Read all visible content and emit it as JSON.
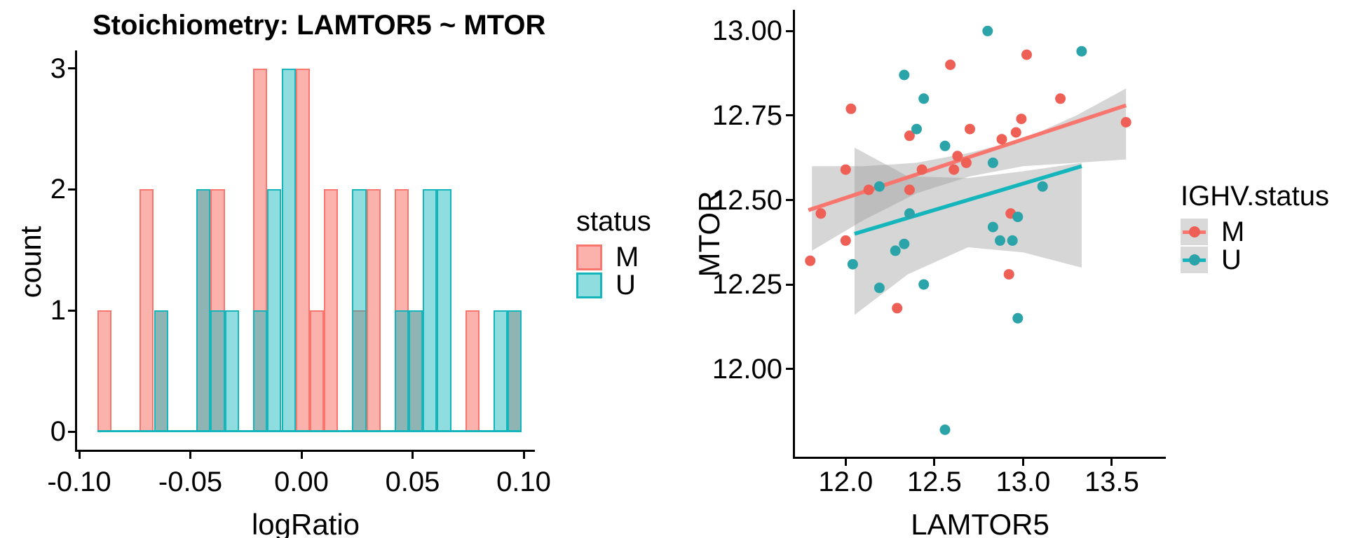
{
  "page": {
    "background": "#ffffff"
  },
  "colors": {
    "m": "#F8766D",
    "m_fill": "rgba(248,118,109,0.56)",
    "m_point": "#EE5F56",
    "u": "#14B6BB",
    "u_fill": "rgba(20,182,187,0.47)",
    "u_point": "#2AA4A9",
    "band": "#999999",
    "band_alpha": 0.4,
    "legend_key_bg": "#D9D9D9",
    "axis": "#000000",
    "text": "#000000"
  },
  "chart_data": [
    {
      "type": "bar",
      "subtype": "overlaid-histogram",
      "title": "Stoichiometry: LAMTOR5 ~ MTOR",
      "xlabel": "logRatio",
      "ylabel": "count",
      "xlim": [
        -0.103,
        0.106
      ],
      "ylim": [
        -0.16,
        3.16
      ],
      "grid": false,
      "bin_width": 0.00637,
      "x_ticks": {
        "values": [
          -0.1,
          -0.05,
          0.0,
          0.05,
          0.1
        ],
        "labels": [
          "-0.10",
          "-0.05",
          "0.00",
          "0.05",
          "0.10"
        ]
      },
      "y_ticks": {
        "values": [
          0,
          1,
          2,
          3
        ],
        "labels": [
          "0",
          "1",
          "2",
          "3"
        ]
      },
      "legend": {
        "title": "status",
        "items": [
          {
            "label": "M",
            "series": "m"
          },
          {
            "label": "U",
            "series": "u"
          }
        ]
      },
      "series": [
        {
          "name": "M",
          "color_key": "m",
          "bins": [
            [
              -0.0887,
              1
            ],
            [
              -0.0696,
              2
            ],
            [
              -0.0632,
              1
            ],
            [
              -0.0441,
              2
            ],
            [
              -0.0377,
              2
            ],
            [
              -0.0186,
              3
            ],
            [
              0.0006,
              3
            ],
            [
              0.0069,
              1
            ],
            [
              0.0133,
              2
            ],
            [
              0.026,
              1
            ],
            [
              0.0324,
              2
            ],
            [
              0.0451,
              2
            ],
            [
              0.0515,
              1
            ],
            [
              0.0769,
              1
            ],
            [
              0.096,
              1
            ]
          ]
        },
        {
          "name": "U",
          "color_key": "u",
          "bins": [
            [
              -0.0632,
              1
            ],
            [
              -0.0441,
              2
            ],
            [
              -0.0377,
              1
            ],
            [
              -0.0313,
              1
            ],
            [
              -0.0186,
              1
            ],
            [
              -0.0122,
              2
            ],
            [
              -0.0058,
              3
            ],
            [
              0.026,
              2
            ],
            [
              0.0451,
              1
            ],
            [
              0.0515,
              1
            ],
            [
              0.0578,
              2
            ],
            [
              0.0642,
              2
            ],
            [
              0.0896,
              1
            ],
            [
              0.096,
              1
            ]
          ]
        }
      ],
      "baseline": {
        "x0": -0.0919,
        "x1": 0.0992,
        "y": 0
      }
    },
    {
      "type": "scatter",
      "title": "",
      "xlabel": "LAMTOR5",
      "ylabel": "MTOR",
      "xlim": [
        11.72,
        13.67
      ],
      "ylim": [
        11.74,
        13.06
      ],
      "grid": false,
      "x_ticks": {
        "values": [
          12.0,
          12.5,
          13.0,
          13.5
        ],
        "labels": [
          "12.0",
          "12.5",
          "13.0",
          "13.5"
        ]
      },
      "y_ticks": {
        "values": [
          12.0,
          12.25,
          12.5,
          12.75,
          13.0
        ],
        "labels": [
          "12.00",
          "12.25",
          "12.50",
          "12.75",
          "13.00"
        ]
      },
      "legend": {
        "title": "IGHV.status",
        "items": [
          {
            "label": "M",
            "series": "m"
          },
          {
            "label": "U",
            "series": "u"
          }
        ]
      },
      "series": [
        {
          "name": "M",
          "color_key": "m",
          "points": [
            [
              11.8,
              12.32
            ],
            [
              11.86,
              12.46
            ],
            [
              12.0,
              12.38
            ],
            [
              12.0,
              12.59
            ],
            [
              12.03,
              12.77
            ],
            [
              12.13,
              12.53
            ],
            [
              12.29,
              12.18
            ],
            [
              12.36,
              12.53
            ],
            [
              12.36,
              12.69
            ],
            [
              12.43,
              12.59
            ],
            [
              12.59,
              12.9
            ],
            [
              12.61,
              12.59
            ],
            [
              12.63,
              12.63
            ],
            [
              12.68,
              12.61
            ],
            [
              12.7,
              12.71
            ],
            [
              12.88,
              12.68
            ],
            [
              12.92,
              12.28
            ],
            [
              12.93,
              12.46
            ],
            [
              12.96,
              12.7
            ],
            [
              12.99,
              12.74
            ],
            [
              13.02,
              12.93
            ],
            [
              13.21,
              12.8
            ],
            [
              13.58,
              12.73
            ]
          ],
          "trend": {
            "x1": 11.79,
            "y1": 12.47,
            "x2": 13.58,
            "y2": 12.78
          },
          "band": [
            [
              11.81,
              12.6,
              12.35
            ],
            [
              12.1,
              12.6,
              12.44
            ],
            [
              12.4,
              12.61,
              12.52
            ],
            [
              12.7,
              12.64,
              12.57
            ],
            [
              13.0,
              12.68,
              12.6
            ],
            [
              13.3,
              12.75,
              12.61
            ],
            [
              13.58,
              12.83,
              12.62
            ]
          ]
        },
        {
          "name": "U",
          "color_key": "u",
          "points": [
            [
              12.04,
              12.31
            ],
            [
              12.19,
              12.24
            ],
            [
              12.19,
              12.54
            ],
            [
              12.28,
              12.35
            ],
            [
              12.33,
              12.37
            ],
            [
              12.33,
              12.87
            ],
            [
              12.36,
              12.46
            ],
            [
              12.4,
              12.71
            ],
            [
              12.44,
              12.25
            ],
            [
              12.44,
              12.8
            ],
            [
              12.56,
              11.82
            ],
            [
              12.56,
              12.66
            ],
            [
              12.8,
              13.0
            ],
            [
              12.83,
              12.42
            ],
            [
              12.83,
              12.61
            ],
            [
              12.87,
              12.38
            ],
            [
              12.94,
              12.38
            ],
            [
              12.97,
              12.15
            ],
            [
              12.97,
              12.45
            ],
            [
              13.11,
              12.54
            ],
            [
              13.33,
              12.94
            ]
          ],
          "trend": {
            "x1": 12.05,
            "y1": 12.4,
            "x2": 13.33,
            "y2": 12.6
          },
          "band": [
            [
              12.05,
              12.655,
              12.16
            ],
            [
              12.35,
              12.57,
              12.28
            ],
            [
              12.69,
              12.565,
              12.36
            ],
            [
              13.0,
              12.585,
              12.345
            ],
            [
              13.33,
              12.61,
              12.3
            ]
          ]
        }
      ]
    }
  ]
}
